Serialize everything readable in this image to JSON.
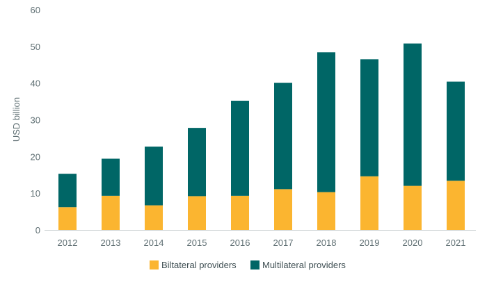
{
  "chart_data": {
    "type": "bar",
    "stacked": true,
    "categories": [
      "2012",
      "2013",
      "2014",
      "2015",
      "2016",
      "2017",
      "2018",
      "2019",
      "2020",
      "2021"
    ],
    "series": [
      {
        "name": "Biltateral providers",
        "color": "#fbb530",
        "values": [
          6.2,
          9.3,
          6.7,
          9.2,
          9.3,
          11.1,
          10.3,
          14.6,
          12.0,
          13.4
        ]
      },
      {
        "name": "Multilateral providers",
        "color": "#006666",
        "values": [
          9.1,
          10.1,
          16.0,
          18.6,
          25.9,
          29.0,
          38.1,
          31.9,
          38.8,
          27.0
        ]
      }
    ],
    "title": "",
    "xlabel": "",
    "ylabel": "USD billion",
    "ylim": [
      0,
      60
    ],
    "yticks": [
      "0",
      "10",
      "20",
      "30",
      "40",
      "50",
      "60"
    ],
    "grid": false,
    "legend_position": "bottom"
  }
}
